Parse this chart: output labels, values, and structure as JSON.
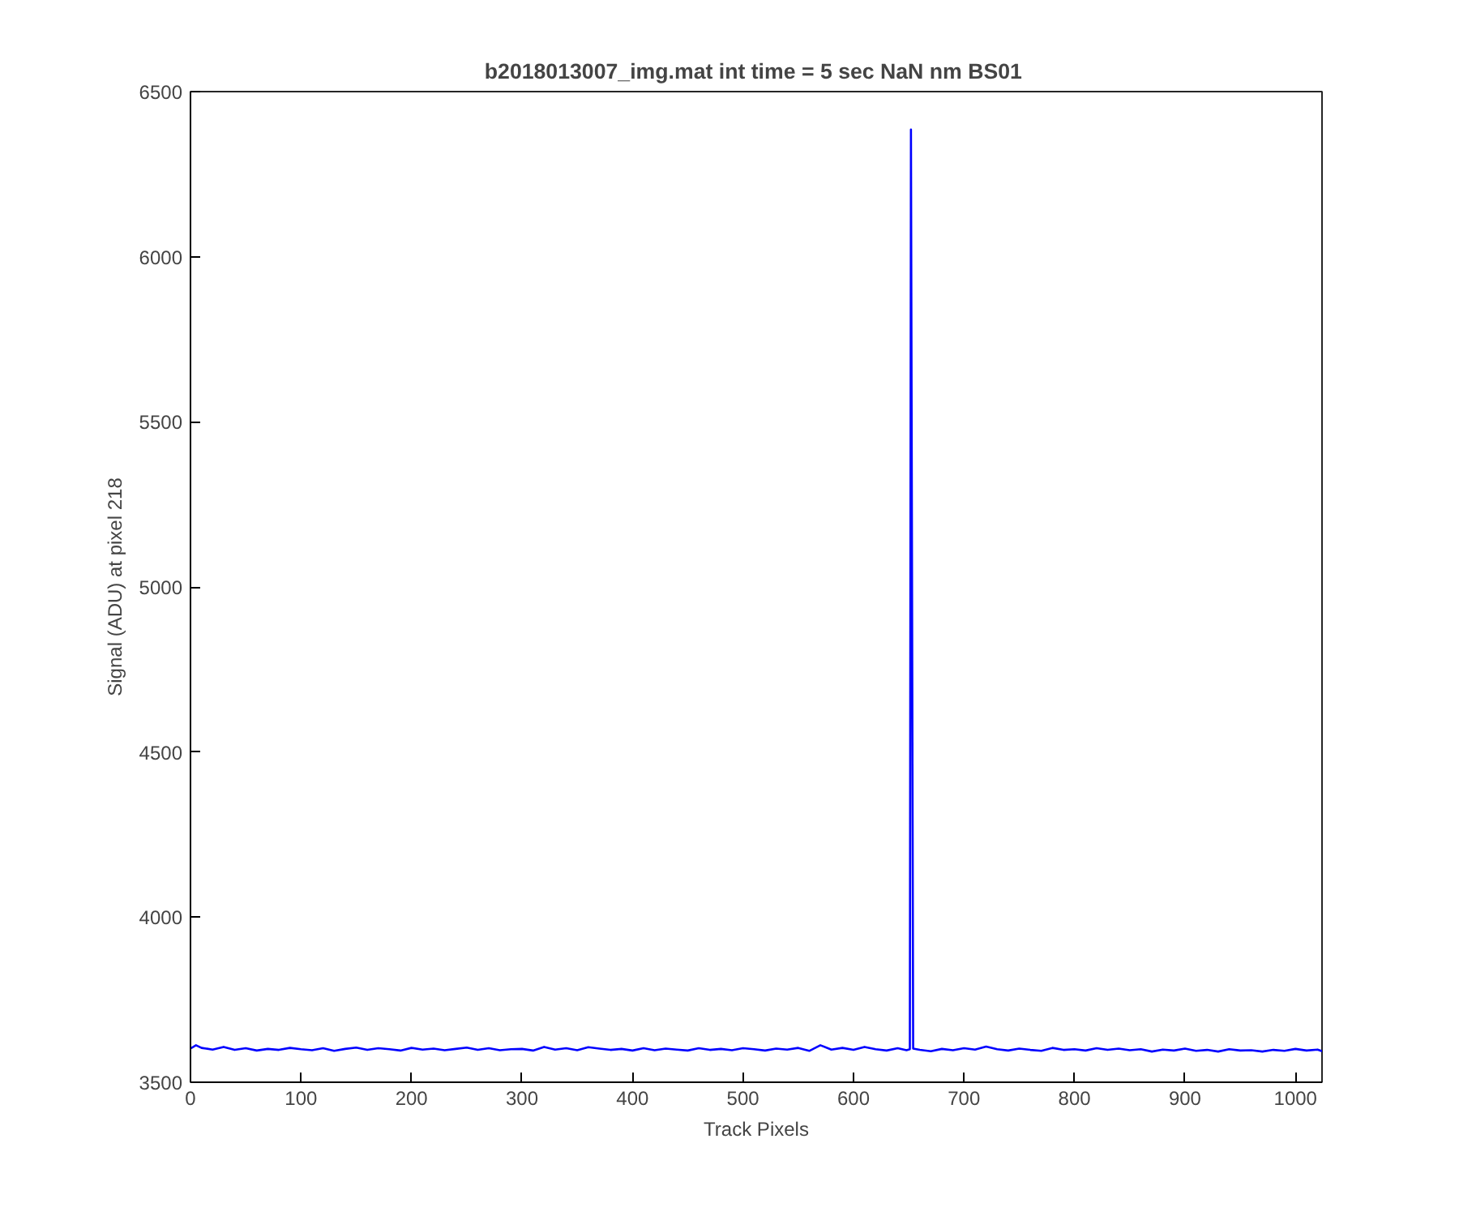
{
  "chart_data": {
    "type": "line",
    "title": "b2018013007_img.mat int time = 5 sec  NaN nm BS01",
    "xlabel": "Track Pixels",
    "ylabel": "Signal (ADU) at pixel 218",
    "xlim": [
      0,
      1024
    ],
    "ylim": [
      3500,
      6500
    ],
    "xticks": [
      0,
      100,
      200,
      300,
      400,
      500,
      600,
      700,
      800,
      900,
      1000
    ],
    "yticks": [
      3500,
      4000,
      4500,
      5000,
      5500,
      6000,
      6500
    ],
    "grid": false,
    "series": [
      {
        "color": "#0000ff",
        "x": [
          0,
          5,
          10,
          20,
          30,
          40,
          50,
          60,
          70,
          80,
          90,
          100,
          110,
          120,
          130,
          140,
          150,
          160,
          170,
          180,
          190,
          200,
          210,
          220,
          230,
          240,
          250,
          260,
          270,
          280,
          290,
          300,
          310,
          320,
          330,
          340,
          350,
          360,
          370,
          380,
          390,
          400,
          410,
          420,
          430,
          440,
          450,
          460,
          470,
          480,
          490,
          500,
          510,
          520,
          530,
          540,
          550,
          560,
          570,
          580,
          590,
          600,
          610,
          620,
          630,
          640,
          648,
          651,
          652,
          654,
          660,
          670,
          680,
          690,
          700,
          710,
          720,
          730,
          740,
          750,
          760,
          770,
          780,
          790,
          800,
          810,
          820,
          830,
          840,
          850,
          860,
          870,
          880,
          890,
          900,
          910,
          920,
          930,
          940,
          950,
          960,
          970,
          980,
          990,
          1000,
          1010,
          1020,
          1024
        ],
        "values": [
          3602,
          3612,
          3604,
          3599,
          3607,
          3598,
          3603,
          3596,
          3601,
          3598,
          3604,
          3600,
          3597,
          3603,
          3595,
          3601,
          3605,
          3598,
          3603,
          3600,
          3596,
          3604,
          3599,
          3602,
          3597,
          3601,
          3605,
          3598,
          3603,
          3597,
          3600,
          3601,
          3596,
          3607,
          3599,
          3603,
          3597,
          3606,
          3602,
          3598,
          3601,
          3596,
          3603,
          3597,
          3602,
          3599,
          3596,
          3603,
          3598,
          3601,
          3597,
          3603,
          3600,
          3596,
          3602,
          3599,
          3604,
          3595,
          3612,
          3599,
          3604,
          3598,
          3607,
          3600,
          3596,
          3603,
          3597,
          3600,
          6385,
          3602,
          3598,
          3594,
          3601,
          3597,
          3603,
          3599,
          3608,
          3600,
          3596,
          3602,
          3598,
          3595,
          3604,
          3598,
          3600,
          3596,
          3603,
          3598,
          3602,
          3597,
          3600,
          3593,
          3599,
          3596,
          3602,
          3595,
          3598,
          3593,
          3600,
          3596,
          3597,
          3593,
          3598,
          3595,
          3601,
          3596,
          3599,
          3594
        ]
      }
    ]
  }
}
